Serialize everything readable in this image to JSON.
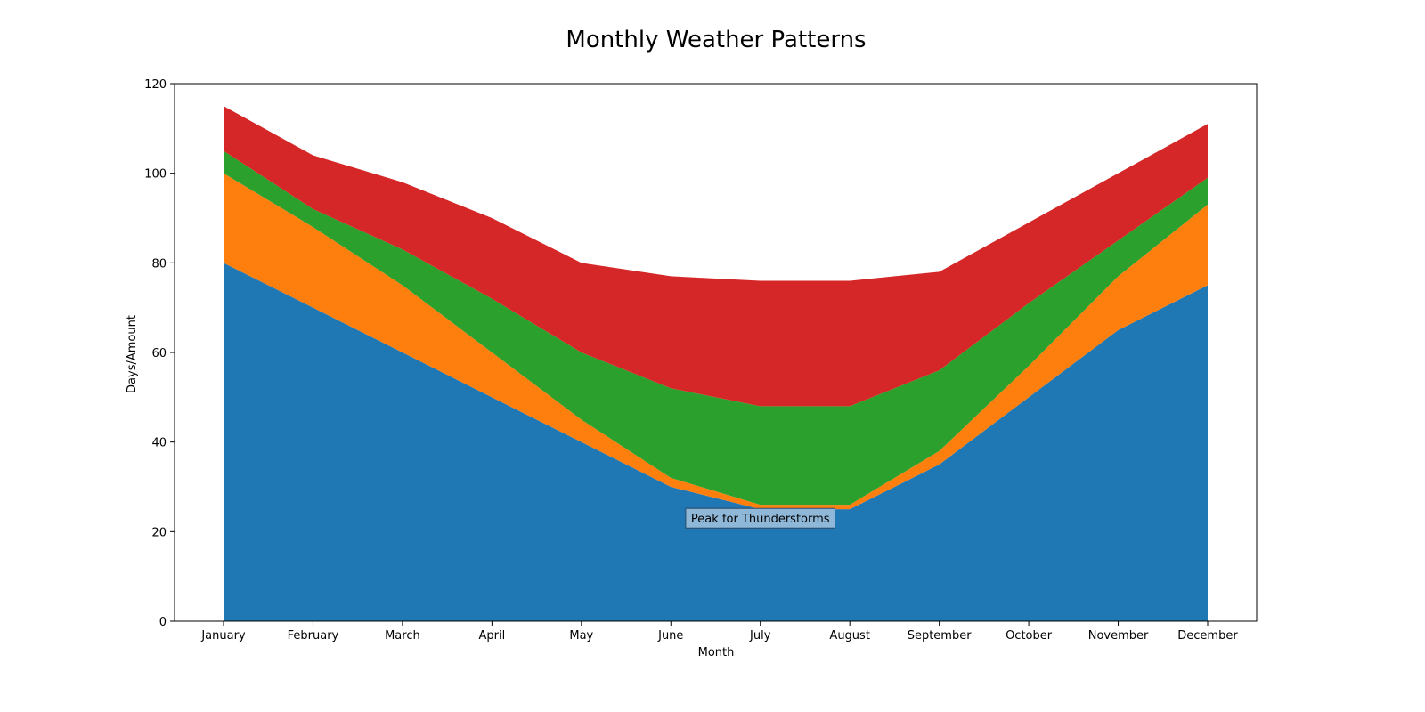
{
  "chart_data": {
    "type": "area",
    "stacked": true,
    "title": "Monthly Weather Patterns",
    "xlabel": "Month",
    "ylabel": "Days/Amount",
    "categories": [
      "January",
      "February",
      "March",
      "April",
      "May",
      "June",
      "July",
      "August",
      "September",
      "October",
      "November",
      "December"
    ],
    "ylim": [
      0,
      120
    ],
    "yticks": [
      0,
      20,
      40,
      60,
      80,
      100,
      120
    ],
    "grid": false,
    "legend": "none",
    "series": [
      {
        "color": "#1f77b4",
        "values": [
          80,
          70,
          60,
          50,
          40,
          30,
          25,
          25,
          35,
          50,
          65,
          75
        ]
      },
      {
        "color": "#ff7f0e",
        "values": [
          20,
          18,
          15,
          10,
          5,
          2,
          1,
          1,
          3,
          7,
          12,
          18
        ]
      },
      {
        "color": "#2ca02c",
        "values": [
          5,
          4,
          8,
          12,
          15,
          20,
          22,
          22,
          18,
          14,
          8,
          6
        ]
      },
      {
        "color": "#d62728",
        "values": [
          10,
          12,
          15,
          18,
          20,
          25,
          28,
          28,
          22,
          18,
          15,
          12
        ]
      }
    ],
    "annotations": [
      {
        "text": "Peak for Thunderstorms",
        "x": "July",
        "y": 23
      }
    ]
  }
}
